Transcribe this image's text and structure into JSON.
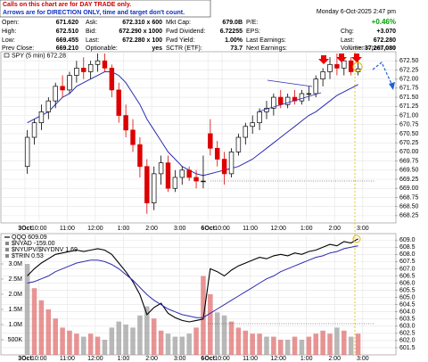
{
  "notes": [
    "Calls on this chart are for DAY TRADE only.",
    "Arrows are for DIRECTION ONLY, time and target don't count."
  ],
  "quote": {
    "date": "Monday 6-Oct-2025 2:47 pm",
    "change_pct": "+0.46%",
    "columns": [
      [
        [
          "Open:",
          "671.620"
        ],
        [
          "High:",
          "672.510"
        ],
        [
          "Low:",
          "669.455"
        ],
        [
          "Prev Close:",
          "669.210"
        ]
      ],
      [
        [
          "Ask:",
          "672.310 x 600"
        ],
        [
          "Bid:",
          "672.290 x 1000"
        ],
        [
          "Last:",
          "672.280 x 100"
        ],
        [
          "Optionable:",
          "yes"
        ]
      ],
      [
        [
          "Mkt Cap:",
          "679.0B"
        ],
        [
          "Fwd Dividend:",
          "6.72255"
        ],
        [
          "Fwd Yield:",
          "1.00%"
        ],
        [
          "SCTR (ETF):",
          "73.7"
        ]
      ],
      [
        [
          "P/E:"
        ],
        [
          "EPS:"
        ],
        [
          "Last Earnings:"
        ],
        [
          "Next Earnings:"
        ]
      ]
    ],
    "right": [
      [
        "Chg:",
        "+3.070"
      ],
      [
        "Last:",
        "672.280"
      ],
      [
        "Volume:",
        "37,267,080"
      ]
    ]
  },
  "chart_data": [
    {
      "type": "candlestick",
      "name": "SPY (5 min) 672.28",
      "credit": "© StockCharts.com",
      "x": [
        1,
        4,
        7,
        10,
        13,
        16,
        19,
        22,
        25,
        28,
        31,
        34,
        37,
        40,
        43,
        46,
        49,
        52,
        55,
        58,
        61,
        64,
        67,
        70,
        73,
        76,
        79,
        82,
        85,
        88,
        91,
        94,
        97,
        100,
        103,
        106,
        109,
        112,
        115,
        118,
        121,
        124,
        127,
        130,
        133,
        136,
        139,
        142
      ],
      "open": [
        669.6,
        670.4,
        670.8,
        671.1,
        671.4,
        671.8,
        671.7,
        672.1,
        672.3,
        672.2,
        672.4,
        672.5,
        672.3,
        671.7,
        671.0,
        670.6,
        670.2,
        669.6,
        668.6,
        669.4,
        669.7,
        669.0,
        669.3,
        669.5,
        669.3,
        669.2,
        670.5,
        670.1,
        669.8,
        669.4,
        670.0,
        670.4,
        670.7,
        670.8,
        671.1,
        671.2,
        671.5,
        671.3,
        671.5,
        671.4,
        671.6,
        671.6,
        672.0,
        672.2,
        672.4,
        672.3,
        672.5,
        672.2
      ],
      "high": [
        670.6,
        670.9,
        671.3,
        671.5,
        671.9,
        672.1,
        672.2,
        672.5,
        672.6,
        672.5,
        672.7,
        672.7,
        672.4,
        671.9,
        671.3,
        670.9,
        670.4,
        669.8,
        669.6,
        669.9,
        669.9,
        669.5,
        669.6,
        669.6,
        669.5,
        669.9,
        670.9,
        670.3,
        670.0,
        670.1,
        670.5,
        670.8,
        671.0,
        671.2,
        671.4,
        671.6,
        671.7,
        671.6,
        671.7,
        671.7,
        671.8,
        672.1,
        672.3,
        672.6,
        672.7,
        672.6,
        672.6,
        672.5
      ],
      "low": [
        669.4,
        670.2,
        670.6,
        670.9,
        671.2,
        671.5,
        671.6,
        671.9,
        672.0,
        672.0,
        672.2,
        672.2,
        671.5,
        670.8,
        670.4,
        670.0,
        669.3,
        668.3,
        668.4,
        669.1,
        668.9,
        668.9,
        669.1,
        669.2,
        669.0,
        669.0,
        669.9,
        669.6,
        669.1,
        669.3,
        669.9,
        670.2,
        670.5,
        670.6,
        670.9,
        671.0,
        671.2,
        671.2,
        671.3,
        671.3,
        671.4,
        671.5,
        671.8,
        672.0,
        672.1,
        672.1,
        672.1,
        672.1
      ],
      "close": [
        670.4,
        670.8,
        671.1,
        671.4,
        671.8,
        671.7,
        672.1,
        672.3,
        672.2,
        672.4,
        672.5,
        672.3,
        671.7,
        671.0,
        670.6,
        670.2,
        669.6,
        668.6,
        669.4,
        669.7,
        669.0,
        669.3,
        669.5,
        669.3,
        669.2,
        669.2,
        670.1,
        669.8,
        669.4,
        670.0,
        670.4,
        670.7,
        670.8,
        671.1,
        671.2,
        671.5,
        671.3,
        671.5,
        671.4,
        671.6,
        671.6,
        672.0,
        672.2,
        672.4,
        672.3,
        672.5,
        672.2,
        672.28
      ],
      "up_color": "#000000",
      "down_color": "#dd0000",
      "overlays": [
        {
          "color": "#2c2cb0",
          "values": [
            670.8,
            670.9,
            671.0,
            671.1,
            671.3,
            671.5,
            671.6,
            671.8,
            671.9,
            672.0,
            672.1,
            672.2,
            672.2,
            672.1,
            671.9,
            671.6,
            671.3,
            670.9,
            670.6,
            670.3,
            670.0,
            669.8,
            669.6,
            669.5,
            669.4,
            669.35,
            669.4,
            669.45,
            669.5,
            669.55,
            669.6,
            669.7,
            669.8,
            669.95,
            670.1,
            670.25,
            670.4,
            670.55,
            670.7,
            670.85,
            671.0,
            671.1,
            671.25,
            671.4,
            671.55,
            671.65,
            671.75,
            671.85
          ]
        }
      ],
      "xlim": [
        0,
        149
      ],
      "ylim": [
        668.1,
        672.75
      ],
      "grid": true,
      "xticks": [
        {
          "value": 0,
          "label": "3Oct"
        },
        {
          "value": 6,
          "label": "10:00"
        },
        {
          "value": 18,
          "label": "11:00"
        },
        {
          "value": 30,
          "label": "12:00"
        },
        {
          "value": 42,
          "label": "1:00"
        },
        {
          "value": 54,
          "label": "2:00"
        },
        {
          "value": 66,
          "label": "3:00"
        },
        {
          "value": 78,
          "label": "6Oct"
        },
        {
          "value": 84,
          "label": "10:00"
        },
        {
          "value": 96,
          "label": "11:00"
        },
        {
          "value": 108,
          "label": "12:00"
        },
        {
          "value": 120,
          "label": "1:00"
        },
        {
          "value": 132,
          "label": "2:00"
        },
        {
          "value": 144,
          "label": "3:00"
        }
      ],
      "yticks": [
        {
          "value": 668.25,
          "label": "668.25"
        },
        {
          "value": 668.5,
          "label": "668.50"
        },
        {
          "value": 668.75,
          "label": "668.75"
        },
        {
          "value": 669,
          "label": "669.00"
        },
        {
          "value": 669.25,
          "label": "669.25"
        },
        {
          "value": 669.5,
          "label": "669.50"
        },
        {
          "value": 669.75,
          "label": "669.75"
        },
        {
          "value": 670,
          "label": "670.00"
        },
        {
          "value": 670.25,
          "label": "670.25"
        },
        {
          "value": 670.5,
          "label": "670.50"
        },
        {
          "value": 670.75,
          "label": "670.75"
        },
        {
          "value": 671,
          "label": "671.00"
        },
        {
          "value": 671.25,
          "label": "671.25"
        },
        {
          "value": 671.5,
          "label": "671.50"
        },
        {
          "value": 671.75,
          "label": "671.75"
        },
        {
          "value": 672,
          "label": "672.00"
        },
        {
          "value": 672.25,
          "label": "672.25"
        },
        {
          "value": 672.5,
          "label": "672.50"
        }
      ]
    },
    {
      "type": "line",
      "x": [
        1,
        4,
        7,
        10,
        13,
        16,
        19,
        22,
        25,
        28,
        31,
        34,
        37,
        40,
        43,
        46,
        49,
        52,
        55,
        58,
        61,
        64,
        67,
        70,
        73,
        76,
        79,
        82,
        85,
        88,
        91,
        94,
        97,
        100,
        103,
        106,
        109,
        112,
        115,
        118,
        121,
        124,
        127,
        130,
        133,
        136,
        139,
        142
      ],
      "series": [
        {
          "name": "QQQ 609.09",
          "color": "#000000",
          "values": [
            606.5,
            607.0,
            607.4,
            607.7,
            608.0,
            608.1,
            608.2,
            608.3,
            608.2,
            608.3,
            608.4,
            608.3,
            608.0,
            607.4,
            606.8,
            606.1,
            605.2,
            603.8,
            604.3,
            604.6,
            603.9,
            603.6,
            603.4,
            603.3,
            603.4,
            603.5,
            607.0,
            606.8,
            606.5,
            606.9,
            607.2,
            607.4,
            607.6,
            607.8,
            607.7,
            607.9,
            608.0,
            607.9,
            608.1,
            608.0,
            608.2,
            608.3,
            608.5,
            608.7,
            608.6,
            608.9,
            608.8,
            609.09
          ]
        },
        {
          "color": "#2c2cb0",
          "values": [
            606.0,
            606.1,
            606.3,
            606.5,
            606.8,
            607.0,
            607.2,
            607.4,
            607.5,
            607.6,
            607.6,
            607.5,
            607.3,
            607.0,
            606.6,
            606.2,
            605.7,
            605.2,
            604.8,
            604.5,
            604.2,
            604.0,
            603.8,
            603.7,
            603.6,
            603.6,
            603.9,
            604.2,
            604.5,
            604.8,
            605.1,
            605.4,
            605.7,
            606.0,
            606.3,
            606.5,
            606.8,
            607.0,
            607.2,
            607.4,
            607.6,
            607.8,
            607.9,
            608.1,
            608.2,
            608.4,
            608.5,
            608.6
          ]
        },
        {
          "type": "bar",
          "axis": "y2",
          "color": "#a0a0a0",
          "up_color": "#e07070",
          "values": [
            3000000,
            2200000,
            1800000,
            1500000,
            1200000,
            900000,
            800000,
            700000,
            600000,
            700000,
            600000,
            500000,
            900000,
            1100000,
            1000000,
            900000,
            1300000,
            1600000,
            1200000,
            800000,
            700000,
            600000,
            600000,
            700000,
            900000,
            2600000,
            2000000,
            1400000,
            1300000,
            1100000,
            900000,
            800000,
            700000,
            700000,
            600000,
            600000,
            500000,
            500000,
            600000,
            500000,
            600000,
            700000,
            800000,
            700000,
            900000,
            800000,
            600000,
            700000
          ]
        }
      ],
      "legend_extra": [
        "$NYAD -159.00",
        "$NYUPV/$NYDNV 1.69",
        "$TRIN 0.53"
      ],
      "xlim": [
        0,
        149
      ],
      "ylim": [
        601.0,
        609.45
      ],
      "y2lim": [
        0,
        4000000
      ],
      "grid": true,
      "xticks": [
        {
          "value": 0,
          "label": "3Oct"
        },
        {
          "value": 6,
          "label": "10:00"
        },
        {
          "value": 18,
          "label": "11:00"
        },
        {
          "value": 30,
          "label": "12:00"
        },
        {
          "value": 42,
          "label": "1:00"
        },
        {
          "value": 54,
          "label": "2:00"
        },
        {
          "value": 66,
          "label": "3:00"
        },
        {
          "value": 78,
          "label": "6Oct"
        },
        {
          "value": 84,
          "label": "10:00"
        },
        {
          "value": 96,
          "label": "11:00"
        },
        {
          "value": 108,
          "label": "12:00"
        },
        {
          "value": 120,
          "label": "1:00"
        },
        {
          "value": 132,
          "label": "2:00"
        },
        {
          "value": 144,
          "label": "3:00"
        }
      ],
      "yticks": [
        {
          "value": 601.5,
          "label": "601.5"
        },
        {
          "value": 602,
          "label": "602.0"
        },
        {
          "value": 602.5,
          "label": "602.5"
        },
        {
          "value": 603,
          "label": "603.0"
        },
        {
          "value": 603.5,
          "label": "603.5"
        },
        {
          "value": 604,
          "label": "604.0"
        },
        {
          "value": 604.5,
          "label": "604.5"
        },
        {
          "value": 605,
          "label": "605.0"
        },
        {
          "value": 605.5,
          "label": "605.5"
        },
        {
          "value": 606,
          "label": "606.0"
        },
        {
          "value": 606.5,
          "label": "606.5"
        },
        {
          "value": 607,
          "label": "607.0"
        },
        {
          "value": 607.5,
          "label": "607.5"
        },
        {
          "value": 608,
          "label": "608.0"
        },
        {
          "value": 608.5,
          "label": "608.5"
        },
        {
          "value": 609,
          "label": "609.0"
        }
      ],
      "y2ticks": [
        {
          "value": 500000,
          "label": "500K"
        },
        {
          "value": 1000000,
          "label": "1.0M"
        },
        {
          "value": 1500000,
          "label": "1.5M"
        },
        {
          "value": 2000000,
          "label": "2.0M"
        },
        {
          "value": 2500000,
          "label": "2.5M"
        },
        {
          "value": 3000000,
          "label": "3.0M"
        }
      ]
    }
  ]
}
